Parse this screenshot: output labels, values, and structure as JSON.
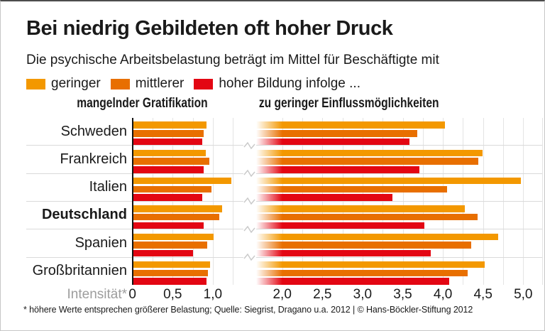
{
  "header": {
    "title": "Bei niedrig Gebildeten oft hoher Druck",
    "subtitle": "Die psychische Arbeitsbelastung beträgt im Mittel für Beschäftigte mit",
    "legend": {
      "items": [
        {
          "label": "geringer",
          "color": "#F39800"
        },
        {
          "label": "mittlerer",
          "color": "#E86F00"
        },
        {
          "label": "hoher Bildung infolge ...",
          "color": "#E30613"
        }
      ]
    }
  },
  "footer": {
    "note": "* höhere Werte entsprechen größerer Belastung; Quelle: Siegrist, Dragano u.a. 2012 | © Hans-Böckler-Stiftung 2012"
  },
  "chart_data": {
    "type": "bar",
    "orientation": "horizontal",
    "grid": true,
    "axis_label": "Intensität*",
    "categories": [
      "Schweden",
      "Frankreich",
      "Italien",
      "Deutschland",
      "Spanien",
      "Großbritannien"
    ],
    "emphasized_category": "Deutschland",
    "series_colors": [
      "#F39800",
      "#E86F00",
      "#E30613"
    ],
    "series_legend": [
      "geringer",
      "mittlerer",
      "hoher Bildung"
    ],
    "panels": [
      {
        "title": "mangelnder Gratifikation",
        "xlim": [
          0,
          1.4
        ],
        "ticks": [
          {
            "value": 0.0,
            "label": "0"
          },
          {
            "value": 0.5,
            "label": "0,5"
          },
          {
            "value": 1.0,
            "label": "1,0"
          }
        ],
        "series": [
          {
            "name": "geringer",
            "values": [
              0.92,
              0.91,
              1.23,
              1.12,
              1.01,
              0.97
            ]
          },
          {
            "name": "mittlerer",
            "values": [
              0.89,
              0.96,
              0.98,
              1.08,
              0.93,
              0.94
            ]
          },
          {
            "name": "hoher",
            "values": [
              0.87,
              0.89,
              0.87,
              0.89,
              0.75,
              0.92
            ]
          }
        ]
      },
      {
        "title": "zu geringer Einflussmöglichkeiten",
        "xlim": [
          2.0,
          5.25
        ],
        "axis_break": true,
        "ticks": [
          {
            "value": 2.0,
            "label": "2,0"
          },
          {
            "value": 2.5,
            "label": "2,5"
          },
          {
            "value": 3.0,
            "label": "3,0"
          },
          {
            "value": 3.5,
            "label": "3,5"
          },
          {
            "value": 4.0,
            "label": "4,0"
          },
          {
            "value": 4.5,
            "label": "4,5"
          },
          {
            "value": 5.0,
            "label": "5,0"
          }
        ],
        "series": [
          {
            "name": "geringer",
            "values": [
              4.03,
              4.49,
              4.97,
              4.27,
              4.69,
              4.52
            ]
          },
          {
            "name": "mittlerer",
            "values": [
              3.68,
              4.44,
              4.05,
              4.43,
              4.35,
              4.31
            ]
          },
          {
            "name": "hoher",
            "values": [
              3.58,
              3.71,
              3.37,
              3.77,
              3.85,
              4.08
            ]
          }
        ]
      }
    ]
  }
}
